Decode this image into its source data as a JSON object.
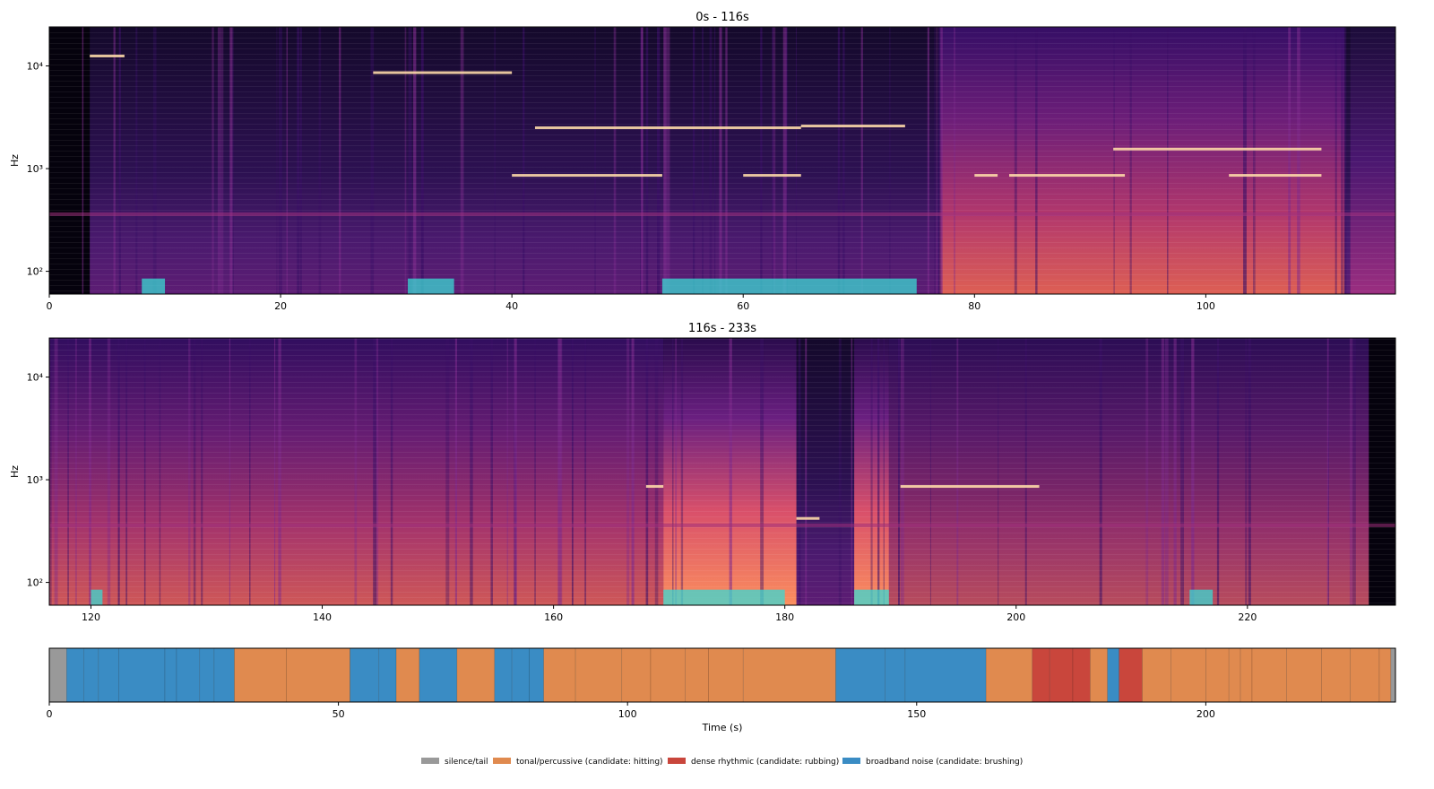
{
  "chart_data": [
    {
      "type": "heatmap",
      "title": "0s - 116s",
      "xlabel": "",
      "ylabel": "Hz",
      "xlim": [
        0,
        116.4
      ],
      "ylim": [
        60,
        24000
      ],
      "yscale": "log",
      "colormap": "magma",
      "xticks": [
        0,
        20,
        40,
        60,
        80,
        100
      ],
      "yticks": [
        {
          "value": 100,
          "label": "10²"
        },
        {
          "value": 1000,
          "label": "10³"
        },
        {
          "value": 10000,
          "label": "10⁴"
        }
      ],
      "notable_features": {
        "silent_start_until_s": 3.5,
        "loud_broadband_region_s": [
          77,
          112
        ],
        "tonal_lines": [
          {
            "start": 3.5,
            "end": 6.5,
            "hz": 12500
          },
          {
            "start": 28,
            "end": 40,
            "hz": 8600
          },
          {
            "start": 40,
            "end": 53,
            "hz": 860
          },
          {
            "start": 60,
            "end": 65,
            "hz": 860
          },
          {
            "start": 42,
            "end": 65,
            "hz": 2500
          },
          {
            "start": 65,
            "end": 74,
            "hz": 2600
          },
          {
            "start": 80,
            "end": 82,
            "hz": 860
          },
          {
            "start": 83,
            "end": 93,
            "hz": 860
          },
          {
            "start": 92,
            "end": 110,
            "hz": 1550
          },
          {
            "start": 102,
            "end": 110,
            "hz": 860
          }
        ]
      }
    },
    {
      "type": "heatmap",
      "title": "116s - 233s",
      "xlabel": "",
      "ylabel": "Hz",
      "xlim": [
        116.4,
        232.8
      ],
      "ylim": [
        60,
        24000
      ],
      "yscale": "log",
      "colormap": "magma",
      "xticks": [
        120,
        140,
        160,
        180,
        200,
        220
      ],
      "yticks": [
        {
          "value": 100,
          "label": "10²"
        },
        {
          "value": 1000,
          "label": "10³"
        },
        {
          "value": 10000,
          "label": "10⁴"
        }
      ],
      "notable_features": {
        "broadband_sweep_s": [
          169.5,
          181
        ],
        "broadband_sweep_2_s": [
          186,
          189
        ],
        "silent_tail_from_s": 230.5,
        "tonal_lines": [
          {
            "start": 168,
            "end": 169.5,
            "hz": 860
          },
          {
            "start": 190,
            "end": 202,
            "hz": 860
          },
          {
            "start": 181,
            "end": 183,
            "hz": 420
          }
        ]
      }
    },
    {
      "type": "bar",
      "subtype": "segment_timeline",
      "xlabel": "Time (s)",
      "xlim": [
        0,
        232.8
      ],
      "xticks": [
        0,
        50,
        100,
        150,
        200
      ],
      "legend_placement": "bottom-center",
      "colors": {
        "silence": "#999999",
        "tonal": "#e08a4f",
        "dense": "#c9463c",
        "broadband": "#3a8cc4"
      },
      "legend": [
        {
          "key": "silence",
          "label": "silence/tail"
        },
        {
          "key": "tonal",
          "label": "tonal/percussive (candidate: hitting)"
        },
        {
          "key": "dense",
          "label": "dense rhythmic (candidate: rubbing)"
        },
        {
          "key": "broadband",
          "label": "broadband noise (candidate: brushing)"
        }
      ],
      "segments": [
        {
          "start": 0,
          "end": 3,
          "class": "silence"
        },
        {
          "start": 3,
          "end": 6,
          "class": "broadband"
        },
        {
          "start": 6,
          "end": 8.5,
          "class": "broadband"
        },
        {
          "start": 8.5,
          "end": 12,
          "class": "broadband"
        },
        {
          "start": 12,
          "end": 20,
          "class": "broadband"
        },
        {
          "start": 20,
          "end": 22,
          "class": "broadband"
        },
        {
          "start": 22,
          "end": 26,
          "class": "broadband"
        },
        {
          "start": 26,
          "end": 28.5,
          "class": "broadband"
        },
        {
          "start": 28.5,
          "end": 32,
          "class": "broadband"
        },
        {
          "start": 32,
          "end": 41,
          "class": "tonal"
        },
        {
          "start": 41,
          "end": 52,
          "class": "tonal"
        },
        {
          "start": 52,
          "end": 57,
          "class": "broadband"
        },
        {
          "start": 57,
          "end": 60,
          "class": "broadband"
        },
        {
          "start": 60,
          "end": 64,
          "class": "tonal"
        },
        {
          "start": 64,
          "end": 70.5,
          "class": "broadband"
        },
        {
          "start": 70.5,
          "end": 77,
          "class": "tonal"
        },
        {
          "start": 77,
          "end": 80,
          "class": "broadband"
        },
        {
          "start": 80,
          "end": 83,
          "class": "broadband"
        },
        {
          "start": 83,
          "end": 85.5,
          "class": "broadband"
        },
        {
          "start": 85.5,
          "end": 91,
          "class": "tonal"
        },
        {
          "start": 91,
          "end": 99,
          "class": "tonal"
        },
        {
          "start": 99,
          "end": 104,
          "class": "tonal"
        },
        {
          "start": 104,
          "end": 110,
          "class": "tonal"
        },
        {
          "start": 110,
          "end": 114,
          "class": "tonal"
        },
        {
          "start": 114,
          "end": 120,
          "class": "tonal"
        },
        {
          "start": 120,
          "end": 136,
          "class": "tonal"
        },
        {
          "start": 136,
          "end": 144.5,
          "class": "broadband"
        },
        {
          "start": 144.5,
          "end": 148,
          "class": "broadband"
        },
        {
          "start": 148,
          "end": 162,
          "class": "broadband"
        },
        {
          "start": 162,
          "end": 170,
          "class": "tonal"
        },
        {
          "start": 170,
          "end": 173,
          "class": "dense"
        },
        {
          "start": 173,
          "end": 177,
          "class": "dense"
        },
        {
          "start": 177,
          "end": 180,
          "class": "dense"
        },
        {
          "start": 180,
          "end": 183,
          "class": "tonal"
        },
        {
          "start": 183,
          "end": 185,
          "class": "broadband"
        },
        {
          "start": 185,
          "end": 189,
          "class": "dense"
        },
        {
          "start": 189,
          "end": 194,
          "class": "tonal"
        },
        {
          "start": 194,
          "end": 200,
          "class": "tonal"
        },
        {
          "start": 200,
          "end": 204,
          "class": "tonal"
        },
        {
          "start": 204,
          "end": 206,
          "class": "tonal"
        },
        {
          "start": 206,
          "end": 208,
          "class": "tonal"
        },
        {
          "start": 208,
          "end": 214,
          "class": "tonal"
        },
        {
          "start": 214,
          "end": 220,
          "class": "tonal"
        },
        {
          "start": 220,
          "end": 225,
          "class": "tonal"
        },
        {
          "start": 225,
          "end": 230,
          "class": "tonal"
        },
        {
          "start": 230,
          "end": 232,
          "class": "tonal"
        },
        {
          "start": 232,
          "end": 232.8,
          "class": "silence"
        }
      ]
    }
  ]
}
